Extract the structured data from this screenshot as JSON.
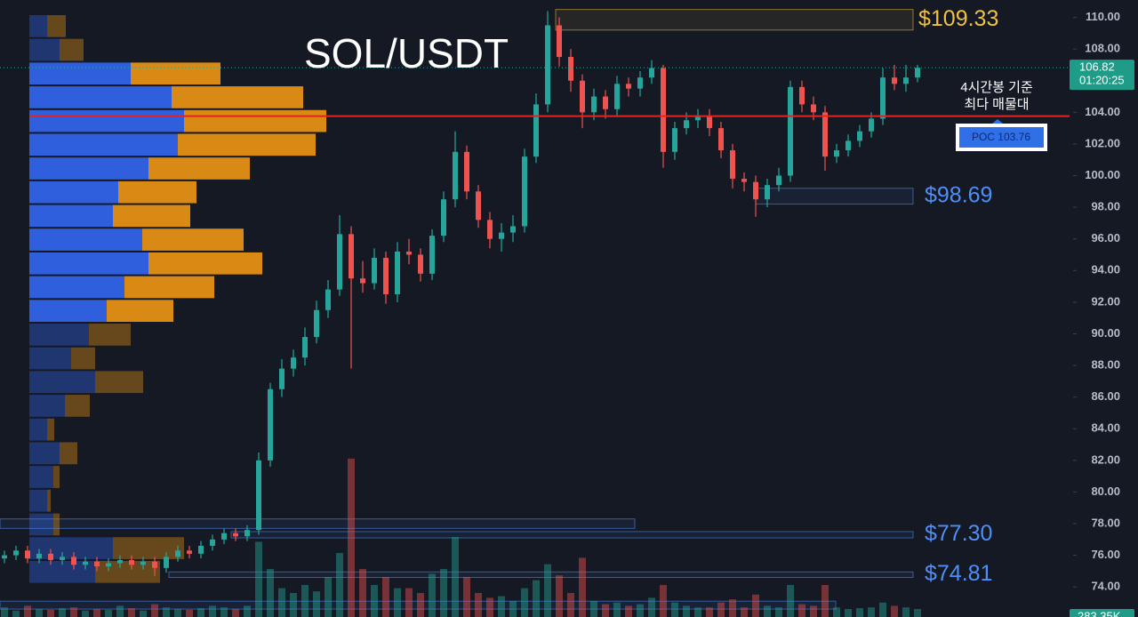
{
  "chart_data": {
    "type": "candlestick",
    "title": "SOL/USDT",
    "up_color": "#26a69a",
    "down_color": "#ef5350",
    "ylim": [
      72.1,
      111.1
    ],
    "yticks": [
      {
        "value": 74,
        "label": "74.00"
      },
      {
        "value": 76,
        "label": "76.00"
      },
      {
        "value": 78,
        "label": "78.00"
      },
      {
        "value": 80,
        "label": "80.00"
      },
      {
        "value": 82,
        "label": "82.00"
      },
      {
        "value": 84,
        "label": "84.00"
      },
      {
        "value": 86,
        "label": "86.00"
      },
      {
        "value": 88,
        "label": "88.00"
      },
      {
        "value": 90,
        "label": "90.00"
      },
      {
        "value": 92,
        "label": "92.00"
      },
      {
        "value": 94,
        "label": "94.00"
      },
      {
        "value": 96,
        "label": "96.00"
      },
      {
        "value": 98,
        "label": "98.00"
      },
      {
        "value": 100,
        "label": "100.00"
      },
      {
        "value": 102,
        "label": "102.00"
      },
      {
        "value": 104,
        "label": "104.00"
      },
      {
        "value": 106,
        "label": "106.00"
      },
      {
        "value": 108,
        "label": "108.00"
      },
      {
        "value": 110,
        "label": "110.00"
      }
    ],
    "open": [
      75.8,
      76.0,
      76.3,
      75.8,
      76.1,
      75.7,
      75.9,
      75.4,
      75.6,
      75.3,
      75.5,
      75.7,
      75.4,
      75.6,
      75.2,
      75.9,
      76.3,
      76.1,
      76.6,
      77.0,
      77.4,
      77.2,
      77.6,
      82.0,
      86.5,
      87.8,
      88.5,
      89.8,
      91.5,
      92.8,
      96.3,
      93.5,
      93.2,
      94.8,
      92.5,
      95.2,
      95.0,
      93.8,
      96.2,
      98.5,
      101.5,
      99.0,
      97.2,
      96.0,
      96.4,
      96.8,
      101.2,
      104.5,
      109.5,
      107.5,
      106.0,
      104.0,
      105.0,
      104.2,
      105.8,
      105.5,
      106.2,
      106.8,
      101.5,
      103.0,
      103.5,
      103.8,
      103.0,
      101.6,
      99.8,
      99.6,
      98.5,
      99.4,
      100.0,
      105.6,
      104.5,
      104.0,
      101.2,
      101.6,
      102.2,
      102.8,
      103.6,
      106.2,
      105.8,
      106.2
    ],
    "high": [
      76.3,
      76.6,
      76.6,
      76.4,
      76.4,
      76.2,
      76.2,
      75.9,
      75.9,
      75.8,
      76.0,
      76.0,
      75.9,
      75.9,
      76.2,
      76.6,
      76.6,
      76.9,
      77.3,
      77.7,
      77.7,
      77.9,
      82.5,
      86.9,
      88.4,
      89.0,
      90.4,
      92.1,
      93.4,
      97.5,
      96.8,
      94.6,
      95.4,
      95.2,
      95.8,
      96.0,
      95.4,
      96.6,
      99.0,
      102.8,
      101.9,
      99.4,
      97.7,
      97.0,
      97.5,
      101.7,
      105.2,
      110.4,
      110.0,
      108.0,
      106.4,
      105.5,
      105.4,
      106.3,
      106.2,
      106.6,
      107.3,
      107.0,
      103.4,
      104.0,
      104.2,
      104.2,
      103.4,
      102.0,
      100.2,
      100.0,
      99.8,
      100.5,
      106.0,
      106.0,
      105.0,
      104.4,
      102.0,
      102.6,
      103.2,
      104.0,
      106.8,
      107.0,
      107.0,
      107.0
    ],
    "low": [
      75.5,
      75.7,
      75.5,
      75.5,
      75.4,
      75.4,
      75.1,
      75.1,
      75.0,
      75.0,
      75.2,
      75.1,
      75.1,
      74.7,
      74.9,
      75.6,
      75.8,
      75.8,
      76.3,
      76.7,
      76.9,
      76.9,
      77.3,
      81.6,
      86.0,
      87.3,
      88.0,
      89.4,
      91.0,
      92.4,
      87.8,
      92.6,
      92.8,
      91.9,
      92.0,
      94.4,
      93.3,
      93.4,
      95.8,
      98.0,
      98.5,
      96.7,
      95.4,
      95.2,
      95.8,
      96.4,
      100.8,
      104.0,
      106.9,
      105.3,
      103.0,
      103.5,
      103.6,
      103.8,
      105.0,
      105.0,
      105.8,
      100.5,
      101.0,
      102.6,
      103.0,
      102.5,
      101.1,
      99.2,
      99.0,
      97.4,
      98.0,
      99.0,
      99.6,
      104.0,
      103.5,
      100.3,
      100.8,
      101.2,
      101.8,
      102.4,
      103.2,
      105.4,
      105.3,
      105.9
    ],
    "close": [
      76.0,
      76.3,
      75.8,
      76.1,
      75.7,
      75.9,
      75.4,
      75.6,
      75.3,
      75.5,
      75.7,
      75.4,
      75.6,
      75.2,
      75.9,
      76.3,
      76.1,
      76.6,
      77.0,
      77.4,
      77.2,
      77.6,
      82.0,
      86.5,
      87.8,
      88.5,
      89.8,
      91.5,
      92.8,
      96.3,
      93.5,
      93.2,
      94.8,
      92.5,
      95.2,
      95.0,
      93.8,
      96.2,
      98.5,
      101.5,
      99.0,
      97.2,
      96.0,
      96.4,
      96.8,
      101.2,
      104.5,
      109.5,
      107.5,
      106.0,
      104.0,
      105.0,
      104.2,
      105.8,
      105.5,
      106.2,
      106.8,
      101.5,
      103.0,
      103.5,
      103.8,
      103.0,
      101.6,
      99.8,
      99.6,
      98.5,
      99.4,
      100.0,
      105.6,
      104.5,
      104.0,
      101.2,
      101.6,
      102.2,
      102.8,
      103.6,
      106.2,
      105.8,
      106.2,
      106.82
    ],
    "volume": [
      60,
      40,
      70,
      50,
      45,
      55,
      60,
      40,
      50,
      45,
      70,
      55,
      40,
      80,
      60,
      50,
      45,
      55,
      70,
      60,
      50,
      70,
      470,
      300,
      180,
      150,
      200,
      160,
      250,
      400,
      990,
      300,
      200,
      250,
      180,
      180,
      150,
      270,
      300,
      500,
      250,
      150,
      120,
      130,
      100,
      180,
      230,
      330,
      260,
      150,
      370,
      100,
      80,
      90,
      70,
      80,
      120,
      200,
      90,
      70,
      60,
      60,
      90,
      110,
      60,
      140,
      70,
      60,
      200,
      80,
      70,
      200,
      60,
      50,
      55,
      60,
      90,
      70,
      60,
      50
    ],
    "volume_ylim": [
      0,
      1000
    ],
    "volume_last_label": "283.35K",
    "last_price": {
      "value": 106.82,
      "label": "106.82",
      "countdown": "01:20:25"
    },
    "volume_profile": {
      "bins": [
        74.2,
        75.7,
        77.2,
        78.7,
        80.2,
        81.7,
        83.2,
        84.7,
        86.2,
        87.7,
        89.2,
        90.7,
        92.2,
        93.7,
        95.2,
        96.7,
        98.2,
        99.7,
        101.2,
        102.7,
        104.2,
        105.7,
        107.2,
        108.7,
        110.2
      ],
      "buy": [
        74,
        94,
        27,
        20,
        27,
        34,
        20,
        40,
        74,
        47,
        67,
        87,
        107,
        134,
        127,
        94,
        100,
        134,
        167,
        174,
        160,
        114,
        34,
        20
      ],
      "sell": [
        73,
        80,
        7,
        4,
        7,
        20,
        8,
        28,
        54,
        27,
        47,
        75,
        101,
        128,
        114,
        87,
        88,
        114,
        155,
        160,
        148,
        101,
        27,
        21
      ],
      "buy_color": "#2f5fdc",
      "sell_color": "#d98a14",
      "value_area": [
        90.9,
        107.5
      ],
      "xlim": [
        0,
        400
      ]
    },
    "poc": {
      "value": 103.76,
      "label": "POC  103.76",
      "note": [
        "4시간봉 기준",
        "최다 매물대"
      ],
      "color": "#e02424"
    },
    "levels": [
      {
        "label": "$109.33",
        "zone": [
          109.2,
          110.5
        ],
        "color": "#f0c040"
      },
      {
        "label": "$98.69",
        "zone": [
          98.2,
          99.2
        ],
        "color": "#4f8ff7"
      },
      {
        "label": "$77.30",
        "zone": [
          77.1,
          77.5
        ],
        "color": "#4f8ff7"
      },
      {
        "label": "$74.81",
        "zone": [
          74.6,
          74.95
        ],
        "color": "#4f8ff7"
      },
      {
        "zone": [
          77.7,
          78.3
        ],
        "color": "#4f8ff7"
      },
      {
        "zone": [
          72.6,
          73.1
        ],
        "color": "#4f8ff7"
      }
    ]
  }
}
